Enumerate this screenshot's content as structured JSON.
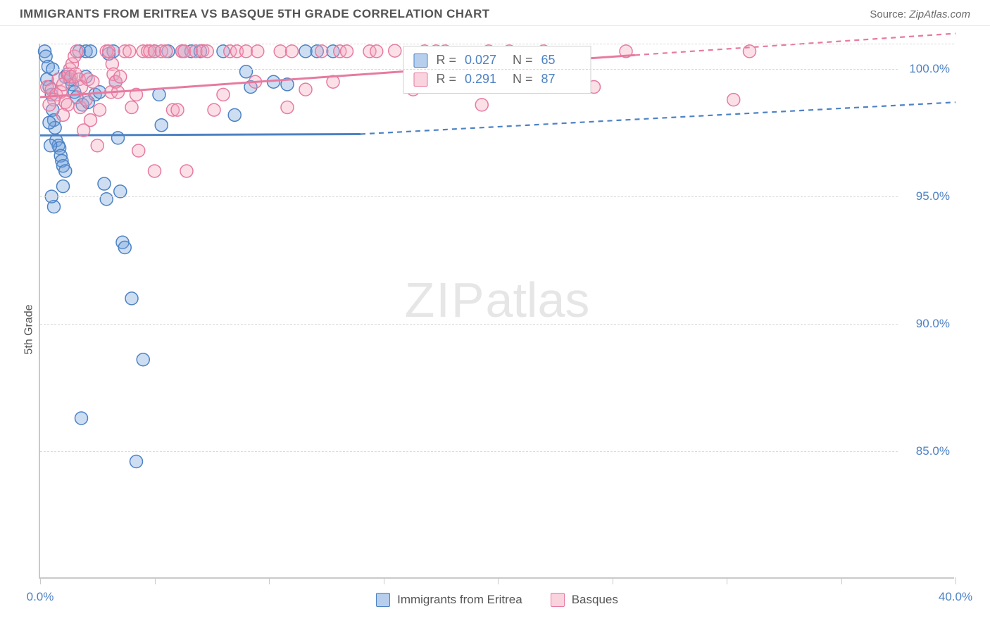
{
  "header": {
    "title": "IMMIGRANTS FROM ERITREA VS BASQUE 5TH GRADE CORRELATION CHART",
    "source_label": "Source:",
    "source_value": "ZipAtlas.com"
  },
  "chart": {
    "type": "scatter",
    "y_axis_label": "5th Grade",
    "watermark_bold": "ZIP",
    "watermark_light": "atlas",
    "background_color": "#ffffff",
    "grid_color": "#d9d9d9",
    "axis_color": "#c9c9c9",
    "tick_label_color": "#4d82c4",
    "xlim": [
      0,
      40
    ],
    "ylim": [
      80,
      101
    ],
    "xticks": [
      0,
      5,
      10,
      15,
      20,
      25,
      30,
      35,
      40
    ],
    "xtick_labels_shown": {
      "0": "0.0%",
      "40": "40.0%"
    },
    "yticks": [
      85,
      90,
      95,
      100
    ],
    "ytick_labels": {
      "85": "85.0%",
      "90": "90.0%",
      "95": "95.0%",
      "100": "100.0%"
    },
    "marker_radius": 9,
    "marker_stroke_width": 1.5,
    "marker_fill_opacity": 0.35,
    "line_width_solid": 3,
    "line_width_dash": 2.2,
    "dash_pattern": "7 6",
    "series": [
      {
        "key": "eritrea",
        "label": "Immigrants from Eritrea",
        "color": "#6fa0dc",
        "stroke": "#4d82c4",
        "r_value": "0.027",
        "n_value": "65",
        "trend": {
          "x1": 0,
          "y1": 97.4,
          "x2": 14,
          "y2": 97.45,
          "dash_x2": 40,
          "dash_y2": 98.7
        },
        "points": [
          [
            0.2,
            100.7
          ],
          [
            0.25,
            100.5
          ],
          [
            0.3,
            99.6
          ],
          [
            0.35,
            100.1
          ],
          [
            0.4,
            99.3
          ],
          [
            0.5,
            99.0
          ],
          [
            0.55,
            98.4
          ],
          [
            0.6,
            98.0
          ],
          [
            0.65,
            97.7
          ],
          [
            0.7,
            97.2
          ],
          [
            0.8,
            97.0
          ],
          [
            0.85,
            96.9
          ],
          [
            0.9,
            96.6
          ],
          [
            0.95,
            96.4
          ],
          [
            1.0,
            96.2
          ],
          [
            1.1,
            96.0
          ],
          [
            1.2,
            99.8
          ],
          [
            1.3,
            99.6
          ],
          [
            1.4,
            99.4
          ],
          [
            1.5,
            99.1
          ],
          [
            1.6,
            98.9
          ],
          [
            1.7,
            100.7
          ],
          [
            1.85,
            98.6
          ],
          [
            2.0,
            100.7
          ],
          [
            2.1,
            98.7
          ],
          [
            2.2,
            100.7
          ],
          [
            2.4,
            99.0
          ],
          [
            2.6,
            99.1
          ],
          [
            2.8,
            95.5
          ],
          [
            2.9,
            94.9
          ],
          [
            3.0,
            100.6
          ],
          [
            3.2,
            100.7
          ],
          [
            3.3,
            99.5
          ],
          [
            3.4,
            97.3
          ],
          [
            3.5,
            95.2
          ],
          [
            3.6,
            93.2
          ],
          [
            3.7,
            93.0
          ],
          [
            4.0,
            91.0
          ],
          [
            4.2,
            84.6
          ],
          [
            4.5,
            88.6
          ],
          [
            5.0,
            100.7
          ],
          [
            5.2,
            99.0
          ],
          [
            5.3,
            97.8
          ],
          [
            5.6,
            100.7
          ],
          [
            6.2,
            100.7
          ],
          [
            6.6,
            100.7
          ],
          [
            7.0,
            100.7
          ],
          [
            8.0,
            100.7
          ],
          [
            8.5,
            98.2
          ],
          [
            9.0,
            99.9
          ],
          [
            9.2,
            99.3
          ],
          [
            10.2,
            99.5
          ],
          [
            10.8,
            99.4
          ],
          [
            11.6,
            100.7
          ],
          [
            12.1,
            100.7
          ],
          [
            12.8,
            100.7
          ],
          [
            1.8,
            86.3
          ],
          [
            0.6,
            94.6
          ],
          [
            0.5,
            95.0
          ],
          [
            1.0,
            95.4
          ],
          [
            1.1,
            99.7
          ],
          [
            0.4,
            97.9
          ],
          [
            0.45,
            97.0
          ],
          [
            0.55,
            100.0
          ],
          [
            2.0,
            99.7
          ]
        ]
      },
      {
        "key": "basques",
        "label": "Basques",
        "color": "#f4a7bd",
        "stroke": "#e77aa0",
        "r_value": "0.291",
        "n_value": "87",
        "trend": {
          "x1": 0,
          "y1": 98.9,
          "x2": 26,
          "y2": 100.55,
          "dash_x2": 40,
          "dash_y2": 101.4
        },
        "points": [
          [
            0.3,
            99.3
          ],
          [
            0.5,
            99.2
          ],
          [
            0.7,
            99.0
          ],
          [
            0.8,
            99.6
          ],
          [
            0.9,
            99.1
          ],
          [
            1.0,
            99.4
          ],
          [
            1.1,
            98.7
          ],
          [
            1.2,
            98.6
          ],
          [
            1.25,
            99.8
          ],
          [
            1.3,
            100.0
          ],
          [
            1.35,
            99.7
          ],
          [
            1.4,
            100.2
          ],
          [
            1.5,
            100.5
          ],
          [
            1.55,
            99.8
          ],
          [
            1.6,
            100.7
          ],
          [
            1.7,
            99.6
          ],
          [
            1.75,
            98.5
          ],
          [
            1.8,
            99.3
          ],
          [
            1.9,
            97.6
          ],
          [
            2.0,
            98.8
          ],
          [
            2.1,
            99.6
          ],
          [
            2.2,
            98.0
          ],
          [
            2.3,
            99.5
          ],
          [
            2.5,
            97.0
          ],
          [
            2.6,
            98.4
          ],
          [
            2.9,
            100.7
          ],
          [
            3.0,
            100.7
          ],
          [
            3.1,
            99.1
          ],
          [
            3.15,
            100.2
          ],
          [
            3.2,
            99.8
          ],
          [
            3.3,
            99.5
          ],
          [
            3.4,
            99.1
          ],
          [
            3.5,
            99.7
          ],
          [
            3.7,
            100.7
          ],
          [
            3.9,
            100.7
          ],
          [
            4.0,
            98.5
          ],
          [
            4.2,
            99.0
          ],
          [
            4.5,
            100.7
          ],
          [
            4.7,
            100.7
          ],
          [
            4.8,
            100.7
          ],
          [
            5.0,
            100.7
          ],
          [
            5.3,
            100.7
          ],
          [
            5.5,
            100.7
          ],
          [
            5.8,
            98.4
          ],
          [
            6.0,
            98.4
          ],
          [
            6.2,
            100.7
          ],
          [
            6.3,
            100.7
          ],
          [
            6.4,
            96.0
          ],
          [
            6.8,
            100.7
          ],
          [
            7.1,
            100.72
          ],
          [
            7.3,
            100.7
          ],
          [
            7.6,
            98.4
          ],
          [
            8.0,
            99.0
          ],
          [
            8.3,
            100.7
          ],
          [
            8.6,
            100.7
          ],
          [
            9.0,
            100.7
          ],
          [
            9.4,
            99.5
          ],
          [
            9.5,
            100.7
          ],
          [
            10.5,
            100.7
          ],
          [
            10.8,
            98.5
          ],
          [
            11.0,
            100.7
          ],
          [
            11.6,
            99.2
          ],
          [
            12.3,
            100.7
          ],
          [
            12.8,
            99.5
          ],
          [
            13.1,
            100.7
          ],
          [
            13.4,
            100.7
          ],
          [
            14.4,
            100.7
          ],
          [
            14.7,
            100.7
          ],
          [
            15.5,
            100.72
          ],
          [
            16.3,
            99.2
          ],
          [
            16.8,
            100.7
          ],
          [
            17.3,
            100.7
          ],
          [
            17.7,
            100.7
          ],
          [
            19.3,
            98.6
          ],
          [
            19.6,
            100.7
          ],
          [
            20.5,
            100.7
          ],
          [
            21.3,
            100.0
          ],
          [
            22.0,
            100.7
          ],
          [
            24.2,
            99.3
          ],
          [
            25.6,
            100.7
          ],
          [
            30.3,
            98.8
          ],
          [
            31.0,
            100.7
          ],
          [
            4.3,
            96.8
          ],
          [
            5.0,
            96.0
          ],
          [
            1.0,
            98.2
          ],
          [
            0.6,
            98.8
          ],
          [
            0.4,
            98.6
          ]
        ]
      }
    ],
    "stats_labels": {
      "r": "R  =",
      "n": "N  ="
    }
  },
  "bottom_legend": {
    "items": [
      "eritrea",
      "basques"
    ]
  }
}
